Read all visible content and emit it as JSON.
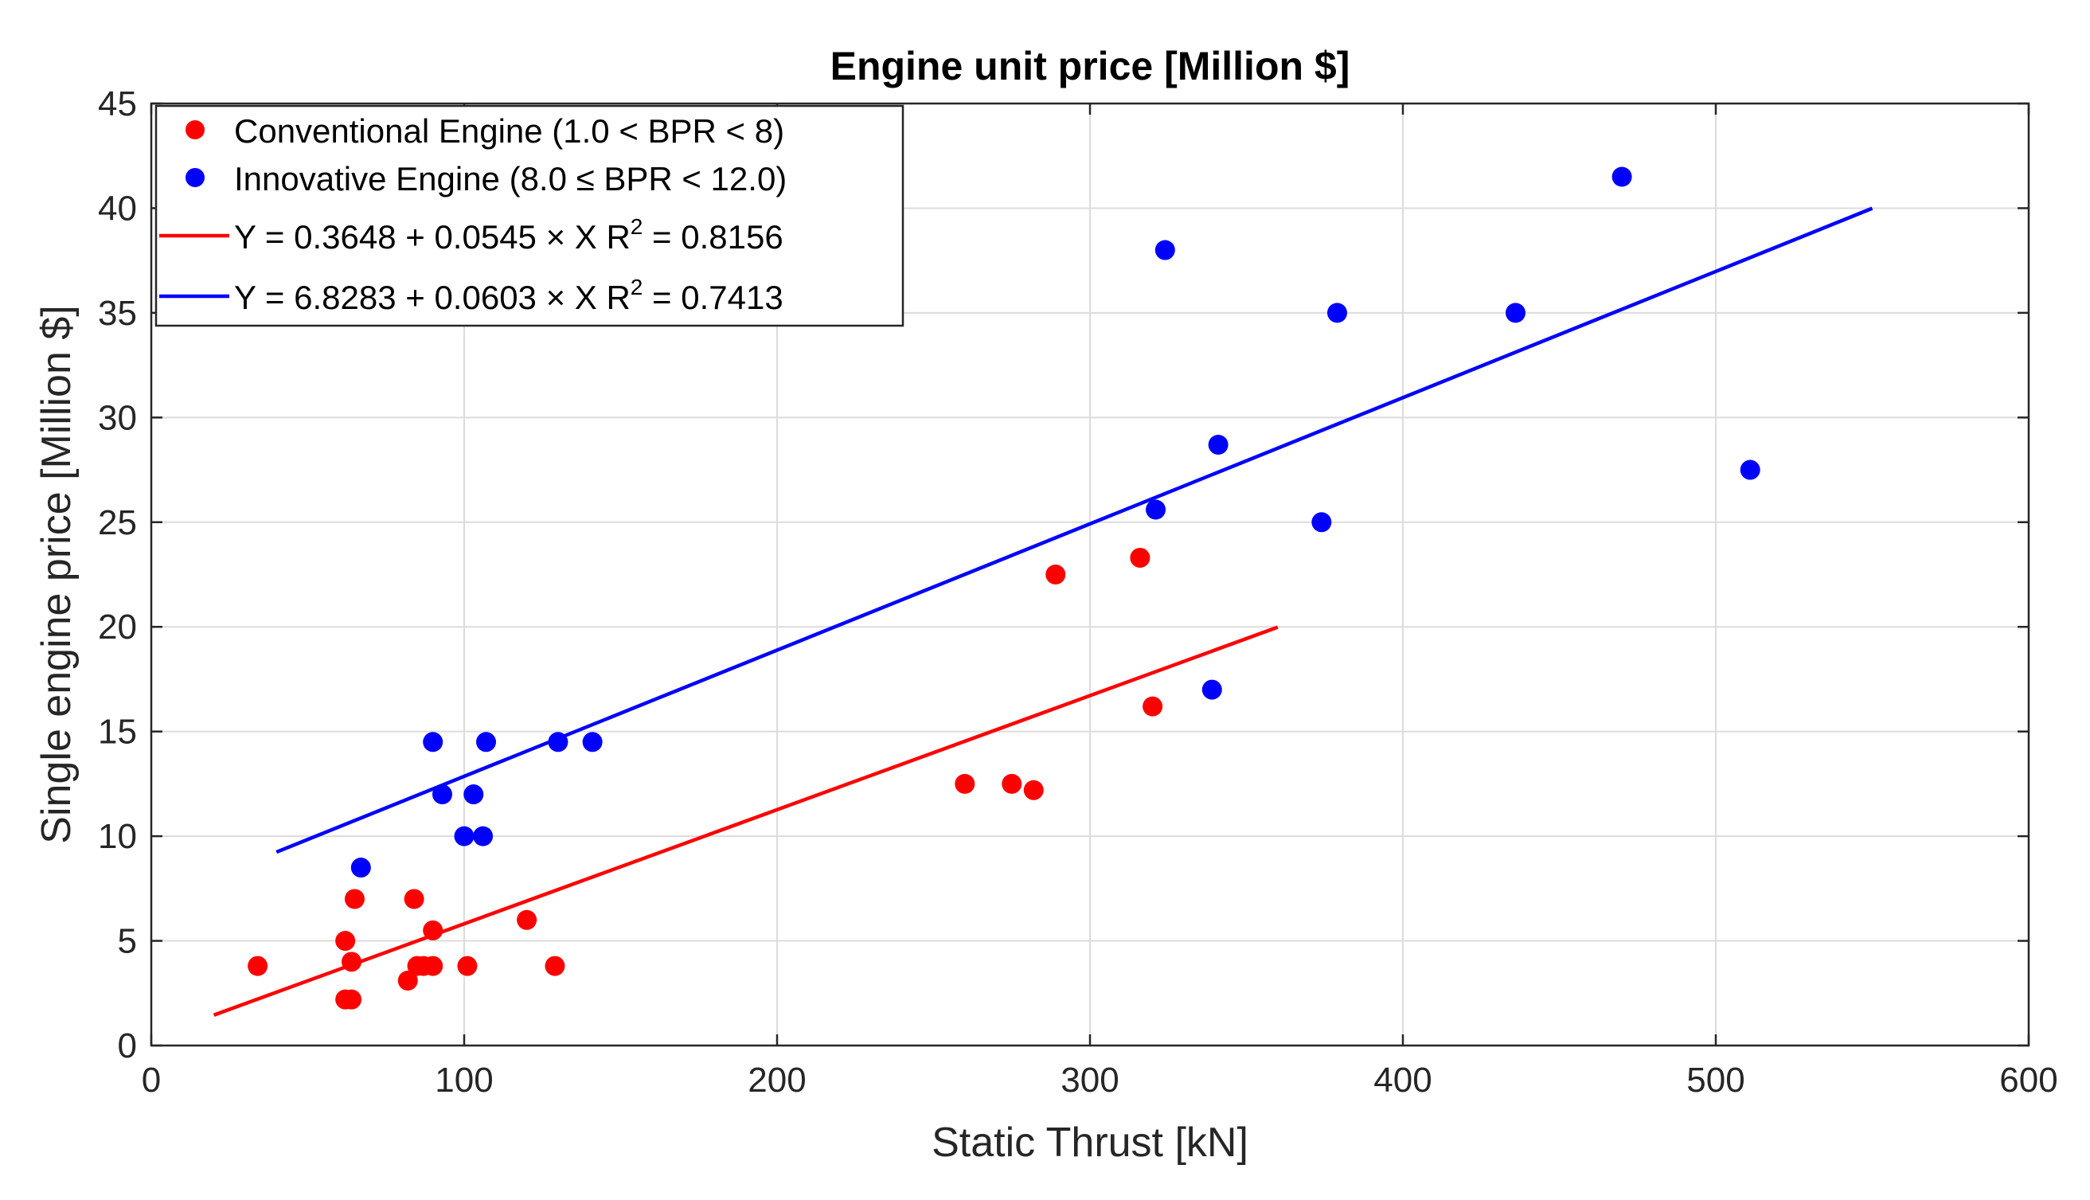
{
  "chart_data": {
    "type": "scatter",
    "title": "Engine unit price [Million $]",
    "xlabel": "Static Thrust [kN]",
    "ylabel": "Single engine price [Million $]",
    "xlim": [
      0,
      600
    ],
    "ylim": [
      0,
      45
    ],
    "xticks": [
      0,
      100,
      200,
      300,
      400,
      500,
      600
    ],
    "yticks": [
      0,
      5,
      10,
      15,
      20,
      25,
      30,
      35,
      40,
      45
    ],
    "grid": true,
    "legend_position": "top-left",
    "series": [
      {
        "name": "Conventional Engine (1.0 < BPR < 8)",
        "kind": "scatter",
        "color": "#ff0000",
        "points": [
          [
            34,
            3.8
          ],
          [
            62,
            5.0
          ],
          [
            62,
            2.2
          ],
          [
            64,
            4.0
          ],
          [
            64,
            2.2
          ],
          [
            65,
            7.0
          ],
          [
            82,
            3.1
          ],
          [
            84,
            7.0
          ],
          [
            85,
            3.8
          ],
          [
            87,
            3.8
          ],
          [
            90,
            3.8
          ],
          [
            90,
            5.5
          ],
          [
            101,
            3.8
          ],
          [
            120,
            6.0
          ],
          [
            129,
            3.8
          ],
          [
            260,
            12.5
          ],
          [
            275,
            12.5
          ],
          [
            282,
            12.2
          ],
          [
            289,
            22.5
          ],
          [
            316,
            23.3
          ],
          [
            320,
            16.2
          ]
        ]
      },
      {
        "name": "Innovative Engine (8.0 ≤ BPR < 12.0)",
        "kind": "scatter",
        "color": "#0000ff",
        "points": [
          [
            67,
            8.5
          ],
          [
            90,
            14.5
          ],
          [
            93,
            12.0
          ],
          [
            100,
            10.0
          ],
          [
            103,
            12.0
          ],
          [
            106,
            10.0
          ],
          [
            107,
            14.5
          ],
          [
            130,
            14.5
          ],
          [
            141,
            14.5
          ],
          [
            321,
            25.6
          ],
          [
            324,
            38.0
          ],
          [
            339,
            17.0
          ],
          [
            341,
            28.7
          ],
          [
            374,
            25.0
          ],
          [
            379,
            35.0
          ],
          [
            436,
            35.0
          ],
          [
            470,
            41.5
          ],
          [
            511,
            27.5
          ]
        ]
      },
      {
        "name": "Y = 0.3648 + 0.0545 × X   R2 = 0.8156",
        "kind": "line",
        "color": "#ff0000",
        "intercept": 0.3648,
        "slope": 0.0545,
        "x_range": [
          20,
          360
        ]
      },
      {
        "name": "Y = 6.8283 + 0.0603 × X   R2 = 0.7413",
        "kind": "line",
        "color": "#0000ff",
        "intercept": 6.8283,
        "slope": 0.0603,
        "x_range": [
          40,
          550
        ]
      }
    ],
    "legend": [
      {
        "text": "Conventional Engine (1.0 < BPR < 8)",
        "marker": "dot",
        "color": "#ff0000"
      },
      {
        "text": "Innovative Engine (8.0 ≤ BPR < 12.0)",
        "marker": "dot",
        "color": "#0000ff"
      },
      {
        "main": "Y = 0.3648 + 0.0545 × X   R",
        "sup": "2",
        "tail": " = 0.8156",
        "marker": "line",
        "color": "#ff0000"
      },
      {
        "main": "Y = 6.8283 + 0.0603 × X   R",
        "sup": "2",
        "tail": " = 0.7413",
        "marker": "line",
        "color": "#0000ff"
      }
    ]
  }
}
